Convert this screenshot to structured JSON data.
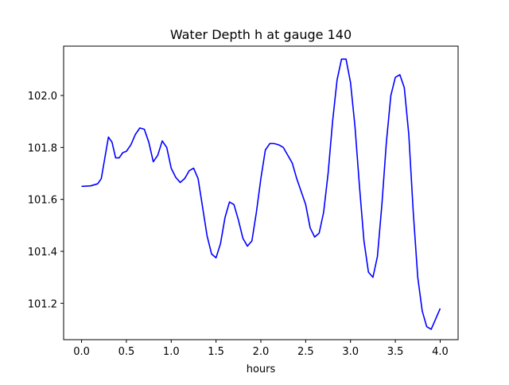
{
  "chart_data": {
    "type": "line",
    "title": "Water Depth h at gauge 140",
    "xlabel": "hours",
    "ylabel": "",
    "xlim": [
      -0.2,
      4.2
    ],
    "ylim": [
      101.06,
      102.19
    ],
    "xticks": [
      0.0,
      0.5,
      1.0,
      1.5,
      2.0,
      2.5,
      3.0,
      3.5,
      4.0
    ],
    "xtick_labels": [
      "0.0",
      "0.5",
      "1.0",
      "1.5",
      "2.0",
      "2.5",
      "3.0",
      "3.5",
      "4.0"
    ],
    "yticks": [
      101.2,
      101.4,
      101.6,
      101.8,
      102.0
    ],
    "ytick_labels": [
      "101.2",
      "101.4",
      "101.6",
      "101.8",
      "102.0"
    ],
    "grid": false,
    "legend": "none",
    "series": [
      {
        "color": "#0000ff",
        "x": [
          0.0,
          0.1,
          0.18,
          0.22,
          0.26,
          0.3,
          0.34,
          0.38,
          0.42,
          0.46,
          0.5,
          0.55,
          0.6,
          0.65,
          0.7,
          0.75,
          0.8,
          0.85,
          0.9,
          0.95,
          1.0,
          1.05,
          1.1,
          1.15,
          1.2,
          1.25,
          1.3,
          1.35,
          1.4,
          1.45,
          1.5,
          1.55,
          1.6,
          1.65,
          1.7,
          1.75,
          1.8,
          1.85,
          1.9,
          1.95,
          2.0,
          2.05,
          2.1,
          2.15,
          2.2,
          2.25,
          2.3,
          2.35,
          2.4,
          2.45,
          2.5,
          2.55,
          2.6,
          2.65,
          2.7,
          2.75,
          2.8,
          2.85,
          2.9,
          2.95,
          3.0,
          3.05,
          3.1,
          3.15,
          3.2,
          3.25,
          3.3,
          3.35,
          3.4,
          3.45,
          3.5,
          3.55,
          3.6,
          3.65,
          3.7,
          3.75,
          3.8,
          3.85,
          3.9,
          3.95,
          4.0
        ],
        "y": [
          101.65,
          101.652,
          101.66,
          101.68,
          101.76,
          101.84,
          101.82,
          101.76,
          101.76,
          101.78,
          101.785,
          101.81,
          101.85,
          101.875,
          101.87,
          101.82,
          101.745,
          101.77,
          101.825,
          101.8,
          101.72,
          101.685,
          101.665,
          101.68,
          101.71,
          101.72,
          101.68,
          101.57,
          101.46,
          101.39,
          101.375,
          101.43,
          101.53,
          101.59,
          101.58,
          101.52,
          101.45,
          101.42,
          101.44,
          101.55,
          101.68,
          101.79,
          101.815,
          101.815,
          101.81,
          101.8,
          101.77,
          101.74,
          101.68,
          101.63,
          101.58,
          101.49,
          101.455,
          101.47,
          101.55,
          101.7,
          101.9,
          102.06,
          102.14,
          102.14,
          102.05,
          101.88,
          101.65,
          101.44,
          101.32,
          101.3,
          101.38,
          101.58,
          101.82,
          102.0,
          102.07,
          102.08,
          102.03,
          101.85,
          101.55,
          101.3,
          101.17,
          101.11,
          101.1,
          101.14,
          101.18
        ]
      }
    ]
  }
}
